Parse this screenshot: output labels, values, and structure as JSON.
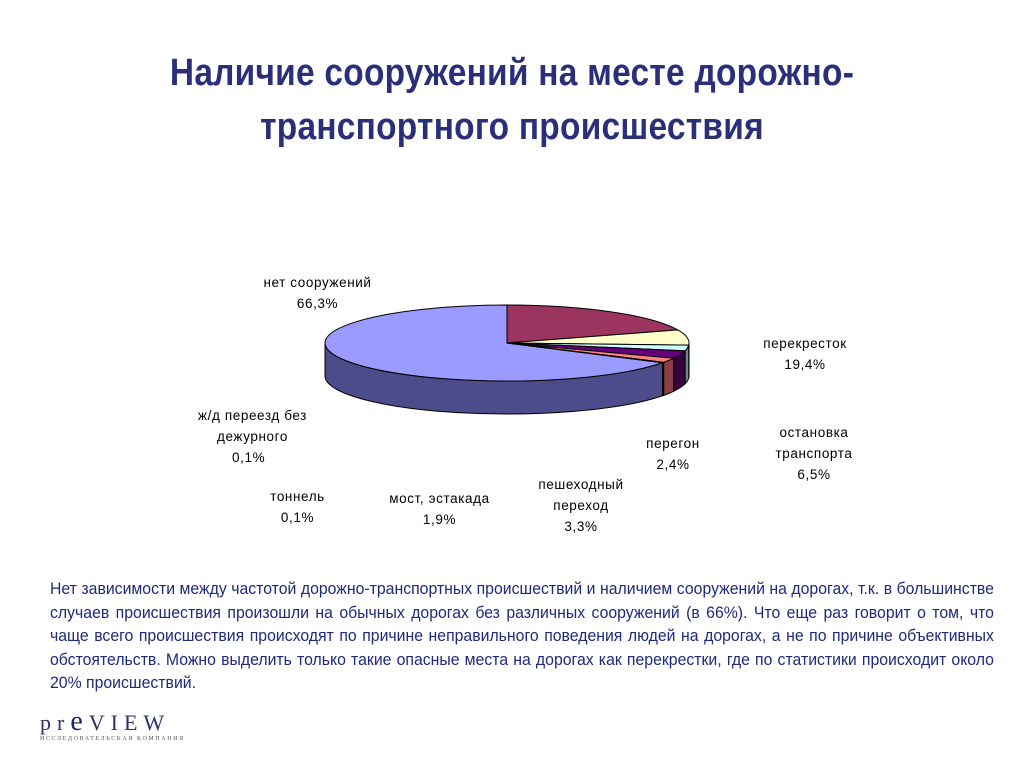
{
  "title": "Наличие сооружений на месте дорожно-транспортного происшествия",
  "chart_data": {
    "type": "pie",
    "title": "",
    "slices": [
      {
        "label": "нет сооружений",
        "value": 66.3,
        "value_label": "66,3%",
        "color": "#9b9bff",
        "side_color": "#4c4c8a"
      },
      {
        "label": "перекресток",
        "value": 19.4,
        "value_label": "19,4%",
        "color": "#9b3560",
        "side_color": "#5a1d36"
      },
      {
        "label": "остановка транспорта",
        "value": 6.5,
        "value_label": "6,5%",
        "color": "#ffffcc",
        "side_color": "#8a8a6a"
      },
      {
        "label": "перегон",
        "value": 2.4,
        "value_label": "2,4%",
        "color": "#ccffff",
        "side_color": "#6a8a8a"
      },
      {
        "label": "пешеходный переход",
        "value": 3.3,
        "value_label": "3,3%",
        "color": "#66007a",
        "side_color": "#36003f"
      },
      {
        "label": "мост, эстакада",
        "value": 1.9,
        "value_label": "1,9%",
        "color": "#ff8080",
        "side_color": "#8a4040"
      },
      {
        "label": "тоннель",
        "value": 0.1,
        "value_label": "0,1%",
        "color": "#0066cc",
        "side_color": "#003366"
      },
      {
        "label": "ж/д переезд без дежурного",
        "value": 0.1,
        "value_label": "0,1%",
        "color": "#ccccff",
        "side_color": "#6a6a8a"
      }
    ]
  },
  "labels": {
    "no_structures": {
      "line1": "нет сооружений",
      "line2": "66,3%"
    },
    "crossroad": {
      "line1": "перекресток",
      "line2": "19,4%"
    },
    "stop": {
      "line1": "остановка",
      "line2": "транспорта",
      "line3": "6,5%"
    },
    "haul": {
      "line1": "перегон",
      "line2": "2,4%"
    },
    "crosswalk": {
      "line1": "пешеходный",
      "line2": "переход",
      "line3": "3,3%"
    },
    "bridge": {
      "line1": "мост, эстакада",
      "line2": "1,9%"
    },
    "tunnel": {
      "line1": "тоннель",
      "line2": "0,1%"
    },
    "railway": {
      "line1": "ж/д переезд без",
      "line2": "дежурного",
      "line3": "0,1%"
    }
  },
  "body_text": "Нет зависимости между  частотой дорожно-транспортных происшествий и наличием сооружений на дорогах, т.к. в большинстве случаев происшествия произошли на обычных дорогах без различных сооружений (в 66%). Что еще раз говорит о том, что чаще всего происшествия происходят по причине неправильного поведения людей на дорогах, а не по причине объективных обстоятельств. Можно выделить только такие опасные места на дорогах как перекрестки, где по статистики происходит около 20% происшествий.",
  "logo": {
    "p": "p",
    "r": "r",
    "e": "e",
    "view": "VIEW",
    "subtitle": "ИССЛЕДОВАТЕЛЬСКАЯ КОМПАНИЯ"
  }
}
